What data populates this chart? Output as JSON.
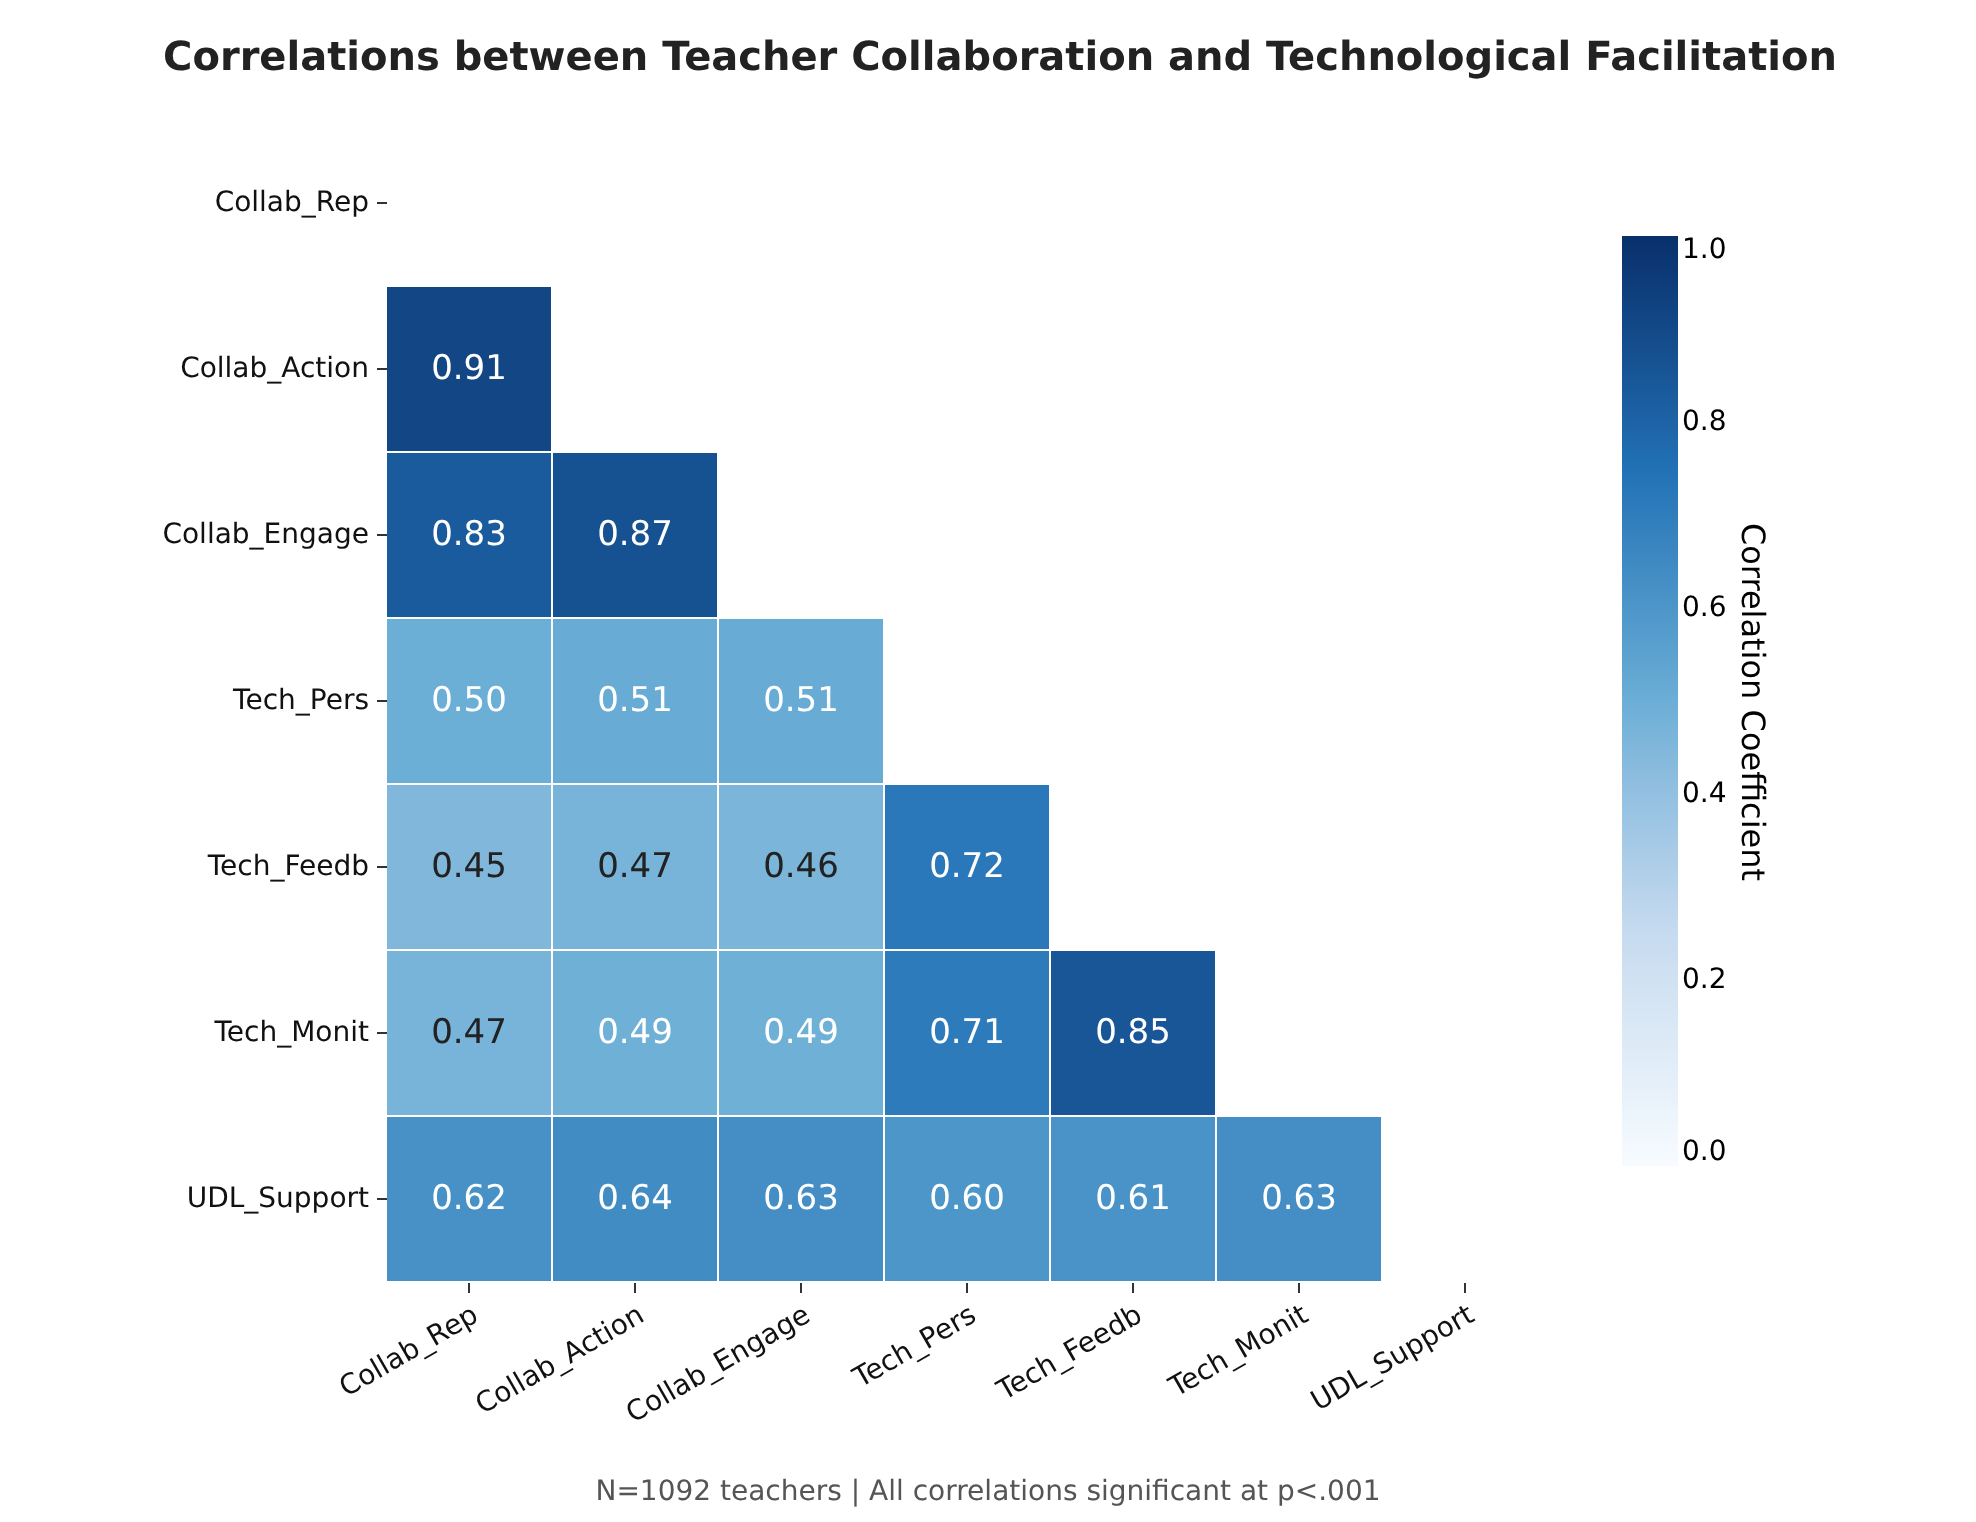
{
  "chart_data": {
    "type": "heatmap",
    "title": "Correlations between Teacher Collaboration and Technological Facilitation",
    "categories": [
      "Collab_Rep",
      "Collab_Action",
      "Collab_Engage",
      "Tech_Pers",
      "Tech_Feedb",
      "Tech_Monit",
      "UDL_Support"
    ],
    "y_categories": [
      "Collab_Rep",
      "Collab_Action",
      "Collab_Engage",
      "Tech_Pers",
      "Tech_Feedb",
      "Tech_Monit",
      "UDL_Support"
    ],
    "cells": [
      [
        null,
        null,
        null,
        null,
        null,
        null,
        null
      ],
      [
        0.91,
        null,
        null,
        null,
        null,
        null,
        null
      ],
      [
        0.83,
        0.87,
        null,
        null,
        null,
        null,
        null
      ],
      [
        0.5,
        0.51,
        0.51,
        null,
        null,
        null,
        null
      ],
      [
        0.45,
        0.47,
        0.46,
        0.72,
        null,
        null,
        null
      ],
      [
        0.47,
        0.49,
        0.49,
        0.71,
        0.85,
        null,
        null
      ],
      [
        0.62,
        0.64,
        0.63,
        0.6,
        0.61,
        0.63,
        null
      ]
    ],
    "cell_labels": [
      [
        null,
        null,
        null,
        null,
        null,
        null,
        null
      ],
      [
        "0.91",
        null,
        null,
        null,
        null,
        null,
        null
      ],
      [
        "0.83",
        "0.87",
        null,
        null,
        null,
        null,
        null
      ],
      [
        "0.50",
        "0.51",
        "0.51",
        null,
        null,
        null,
        null
      ],
      [
        "0.45",
        "0.47",
        "0.46",
        "0.72",
        null,
        null,
        null
      ],
      [
        "0.47",
        "0.49",
        "0.49",
        "0.71",
        "0.85",
        null,
        null
      ],
      [
        "0.62",
        "0.64",
        "0.63",
        "0.60",
        "0.61",
        "0.63",
        null
      ]
    ],
    "clim": [
      0,
      1
    ],
    "cticks": [
      {
        "value": 0,
        "label": "0.0"
      },
      {
        "value": 0.2,
        "label": "0.2"
      },
      {
        "value": 0.4,
        "label": "0.4"
      },
      {
        "value": 0.6,
        "label": "0.6"
      },
      {
        "value": 0.8,
        "label": "0.8"
      },
      {
        "value": 1,
        "label": "1.0"
      }
    ],
    "clabel": "Correlation Coefficient",
    "data_labels": true,
    "annotations": [
      "N=1092 teachers | All correlations significant at p<.001"
    ]
  }
}
